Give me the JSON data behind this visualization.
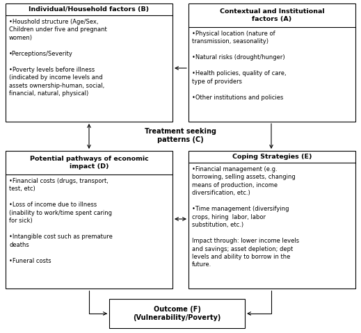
{
  "bg_color": "#ffffff",
  "box_edge_color": "#000000",
  "box_fill": "#ffffff",
  "arrow_color": "#000000",
  "title_B": "Individual/Household factors (B)",
  "content_B": "•Houshold structure (Age/Sex,\nChildren under five and pregnant\nwomen)\n\n•Perceptions/Severity\n\n•Poverty levels before illness\n(indicated by income levels and\nassets ownership-human, social,\nfinancial, natural, physical)",
  "title_A": "Contextual and Institutional\nfactors (A)",
  "content_A": "•Physical location (nature of\ntransmission, seasonality)\n\n•Natural risks (drought/hunger)\n\n•Health policies, quality of care,\ntype of providers\n\n•Other institutions and policies",
  "title_C": "Treatment seeking\npatterns (C)",
  "title_D": "Potential pathways of economic\nimpact (D)",
  "content_D": "•Financial costs (drugs, transport,\ntest, etc)\n\n•Loss of income due to illness\n(inability to work/time spent caring\nfor sick)\n\n•Intangible cost such as premature\ndeaths\n\n•Funeral costs",
  "title_E": "Coping Strategies (E)",
  "content_E": "•Financial management (e.g.\nborrowing, selling assets, changing\nmeans of production, income\ndiversification, etc.)\n\n•Time management (diversifying\ncrops, hiring  labor, labor\nsubstitution, etc.)\n\nImpact through: lower income levels\nand savings; asset depletion; dept\nlevels and ability to borrow in the\nfuture.",
  "title_F": "Outcome (F)\n(Vulnerability/Poverty)"
}
